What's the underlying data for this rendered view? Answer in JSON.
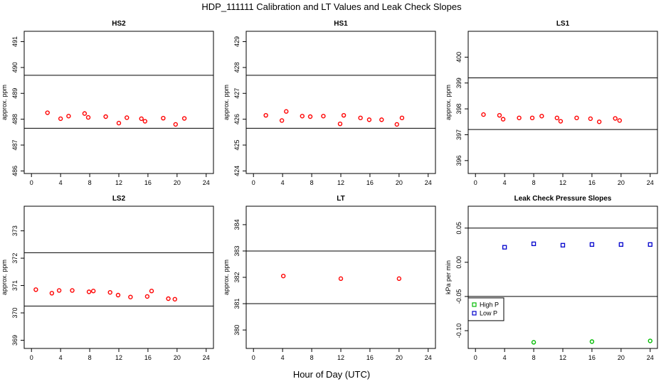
{
  "figure": {
    "title": "HDP_111111  Calibration and LT Values and Leak Check Slopes",
    "xlabel": "Hour of Day (UTC)"
  },
  "colors": {
    "cal_point": "#ff0000",
    "high_p": "#00bb00",
    "low_p": "#0000cc",
    "line": "#000000"
  },
  "chart_data": [
    {
      "id": "hs2",
      "type": "scatter",
      "title": "HS2",
      "ylabel": "approx. ppm",
      "xlim": [
        -1,
        25
      ],
      "ylim": [
        485.9,
        491.4
      ],
      "xticks": [
        0,
        4,
        8,
        12,
        16,
        20,
        24
      ],
      "yticks": [
        486,
        487,
        488,
        489,
        490,
        491
      ],
      "hlines": [
        489.7,
        487.65
      ],
      "series": [
        {
          "name": "HS2",
          "x": [
            2.2,
            4.0,
            5.1,
            7.3,
            7.8,
            10.2,
            12.0,
            13.1,
            15.1,
            15.6,
            18.1,
            19.8,
            21.0
          ],
          "y": [
            488.25,
            488.02,
            488.12,
            488.22,
            488.07,
            488.1,
            487.85,
            488.06,
            488.02,
            487.92,
            488.04,
            487.8,
            488.03
          ]
        }
      ]
    },
    {
      "id": "hs1",
      "type": "scatter",
      "title": "HS1",
      "ylabel": "approx. ppm",
      "xlim": [
        -1,
        25
      ],
      "ylim": [
        423.9,
        429.4
      ],
      "xticks": [
        0,
        4,
        8,
        12,
        16,
        20,
        24
      ],
      "yticks": [
        424,
        425,
        426,
        427,
        428,
        429
      ],
      "hlines": [
        427.7,
        425.65
      ],
      "series": [
        {
          "name": "HS1",
          "x": [
            1.7,
            3.9,
            4.5,
            6.7,
            7.8,
            9.6,
            11.9,
            12.4,
            14.7,
            15.9,
            17.6,
            19.7,
            20.4
          ],
          "y": [
            426.15,
            425.95,
            426.3,
            426.12,
            426.1,
            426.12,
            425.82,
            426.15,
            426.05,
            425.98,
            425.98,
            425.8,
            426.05
          ]
        }
      ]
    },
    {
      "id": "ls1",
      "type": "scatter",
      "title": "LS1",
      "ylabel": "approx. ppm",
      "xlim": [
        -1,
        25
      ],
      "ylim": [
        395.5,
        401.0
      ],
      "xticks": [
        0,
        4,
        8,
        12,
        16,
        20,
        24
      ],
      "yticks": [
        396,
        397,
        398,
        399,
        400
      ],
      "hlines": [
        399.2,
        397.2
      ],
      "series": [
        {
          "name": "LS1",
          "x": [
            1.1,
            3.3,
            3.8,
            6.0,
            7.8,
            9.1,
            11.2,
            11.7,
            13.9,
            15.8,
            17.0,
            19.2,
            19.8
          ],
          "y": [
            397.78,
            397.75,
            397.6,
            397.65,
            397.65,
            397.72,
            397.65,
            397.52,
            397.65,
            397.62,
            397.5,
            397.63,
            397.55
          ]
        }
      ]
    },
    {
      "id": "ls2",
      "type": "scatter",
      "title": "LS2",
      "ylabel": "approx. ppm",
      "xlim": [
        -1,
        25
      ],
      "ylim": [
        368.7,
        373.9
      ],
      "xticks": [
        0,
        4,
        8,
        12,
        16,
        20,
        24
      ],
      "yticks": [
        369,
        370,
        371,
        372,
        373
      ],
      "hlines": [
        372.2,
        370.25
      ],
      "series": [
        {
          "name": "LS2",
          "x": [
            0.6,
            2.8,
            3.8,
            5.6,
            7.9,
            8.5,
            10.8,
            11.9,
            13.6,
            15.9,
            16.5,
            18.8,
            19.7
          ],
          "y": [
            370.85,
            370.72,
            370.82,
            370.82,
            370.77,
            370.8,
            370.75,
            370.65,
            370.58,
            370.6,
            370.8,
            370.52,
            370.5
          ]
        }
      ]
    },
    {
      "id": "lt",
      "type": "scatter",
      "title": "LT",
      "ylabel": "approx. ppm",
      "xlim": [
        -1,
        25
      ],
      "ylim": [
        379.3,
        384.7
      ],
      "xticks": [
        0,
        4,
        8,
        12,
        16,
        20,
        24
      ],
      "yticks": [
        380,
        381,
        382,
        383,
        384
      ],
      "hlines": [
        383.0,
        381.0
      ],
      "series": [
        {
          "name": "LT",
          "x": [
            4.1,
            12.0,
            20.0
          ],
          "y": [
            382.05,
            381.95,
            381.95
          ]
        }
      ]
    },
    {
      "id": "leak",
      "type": "scatter",
      "title": "Leak Check Pressure Slopes",
      "ylabel": "kPa per min",
      "xlim": [
        -1,
        25
      ],
      "ylim": [
        -0.126,
        0.082
      ],
      "xticks": [
        0,
        4,
        8,
        12,
        16,
        20,
        24
      ],
      "yticks": [
        -0.1,
        -0.05,
        0.0,
        0.05
      ],
      "ytick_labels": [
        "-0.10",
        "-0.05",
        "0.00",
        "0.05"
      ],
      "hlines": [
        0.05,
        -0.05
      ],
      "legend": {
        "position": "bottom-left",
        "entries": [
          "High P",
          "Low P"
        ]
      },
      "series": [
        {
          "name": "High P",
          "marker": "circle",
          "x": [
            8,
            16,
            24
          ],
          "y": [
            -0.117,
            -0.116,
            -0.115
          ]
        },
        {
          "name": "Low P",
          "marker": "square",
          "x": [
            4,
            8,
            12,
            16,
            20,
            24
          ],
          "y": [
            0.022,
            0.027,
            0.025,
            0.026,
            0.026,
            0.026
          ]
        }
      ]
    }
  ]
}
